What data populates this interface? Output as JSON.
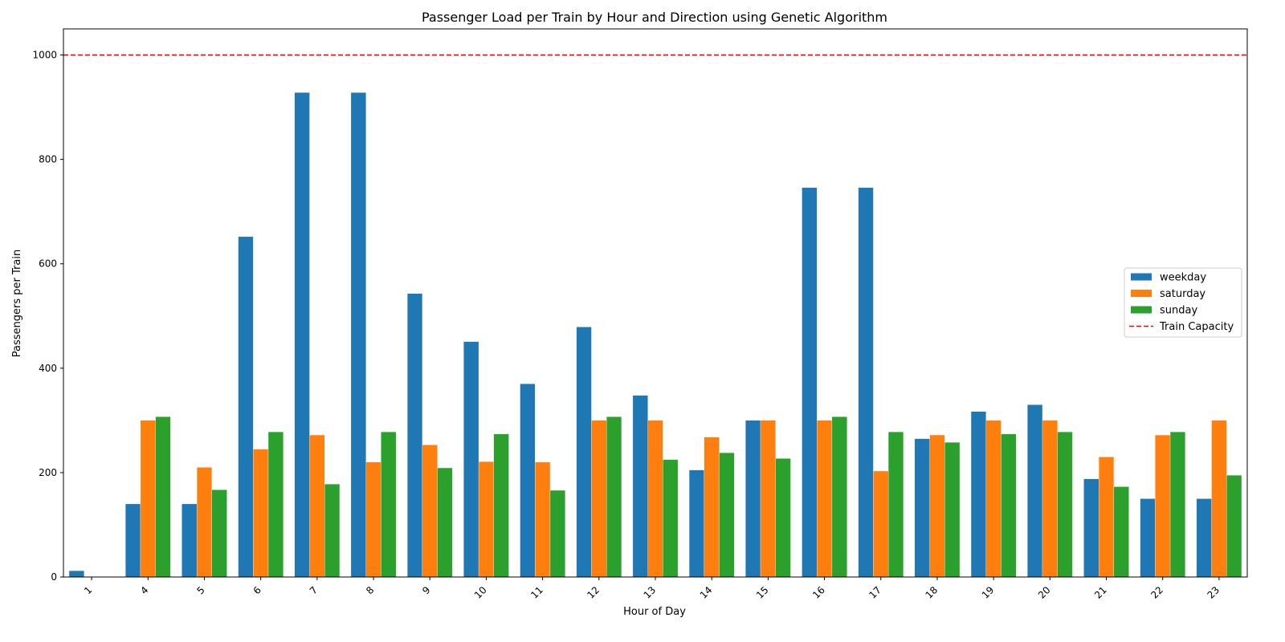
{
  "chart_data": {
    "type": "bar",
    "title": "Passenger Load per Train by Hour and Direction using Genetic Algorithm",
    "xlabel": "Hour of Day",
    "ylabel": "Passengers per Train",
    "categories": [
      "1",
      "4",
      "5",
      "6",
      "7",
      "8",
      "9",
      "10",
      "11",
      "12",
      "13",
      "14",
      "15",
      "16",
      "17",
      "18",
      "19",
      "20",
      "21",
      "22",
      "23"
    ],
    "ylim": [
      0,
      1050
    ],
    "yticks": [
      0,
      200,
      400,
      600,
      800,
      1000
    ],
    "grid": false,
    "legend_position": "center-right",
    "series": [
      {
        "name": "weekday",
        "color": "#1f77b4",
        "values": [
          12,
          140,
          140,
          652,
          928,
          928,
          543,
          451,
          370,
          479,
          348,
          205,
          300,
          746,
          746,
          265,
          317,
          330,
          188,
          150,
          150
        ]
      },
      {
        "name": "saturday",
        "color": "#ff7f0e",
        "values": [
          0,
          300,
          210,
          245,
          272,
          220,
          253,
          221,
          220,
          300,
          300,
          268,
          300,
          300,
          203,
          272,
          300,
          300,
          230,
          272,
          300
        ]
      },
      {
        "name": "sunday",
        "color": "#2ca02c",
        "values": [
          0,
          307,
          167,
          278,
          178,
          278,
          209,
          274,
          166,
          307,
          225,
          238,
          227,
          307,
          278,
          258,
          274,
          278,
          173,
          278,
          195
        ]
      }
    ],
    "reference_line": {
      "name": "Train Capacity",
      "value": 1000,
      "color": "#ff0000",
      "style": "dashed"
    }
  }
}
